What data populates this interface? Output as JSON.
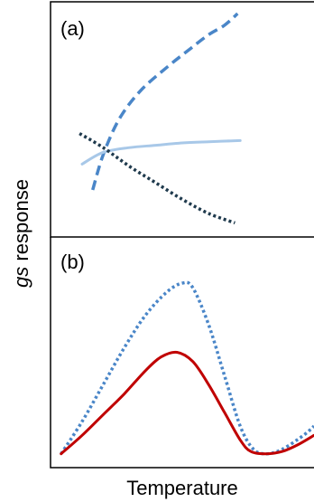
{
  "chart_data": {
    "xlabel": "Temperature",
    "ylabel": "gs response",
    "ylabel_italic_part": "gs",
    "ylabel_rest": " response",
    "panels": [
      {
        "label": "(a)",
        "type": "line",
        "series": [
          {
            "style": "dashed",
            "color": "#4a86c8",
            "points": [
              [
                0.16,
                0.2
              ],
              [
                0.2,
                0.35
              ],
              [
                0.26,
                0.5
              ],
              [
                0.34,
                0.62
              ],
              [
                0.44,
                0.72
              ],
              [
                0.53,
                0.8
              ],
              [
                0.6,
                0.86
              ],
              [
                0.66,
                0.9
              ],
              [
                0.71,
                0.95
              ]
            ]
          },
          {
            "style": "solid",
            "color": "#a8c8e8",
            "points": [
              [
                0.12,
                0.31
              ],
              [
                0.2,
                0.36
              ],
              [
                0.3,
                0.38
              ],
              [
                0.4,
                0.39
              ],
              [
                0.5,
                0.4
              ],
              [
                0.6,
                0.405
              ],
              [
                0.72,
                0.41
              ]
            ]
          },
          {
            "style": "dotted",
            "color": "#1f3a4d",
            "points": [
              [
                0.11,
                0.44
              ],
              [
                0.2,
                0.38
              ],
              [
                0.3,
                0.3
              ],
              [
                0.4,
                0.23
              ],
              [
                0.5,
                0.16
              ],
              [
                0.6,
                0.1
              ],
              [
                0.7,
                0.06
              ]
            ]
          }
        ]
      },
      {
        "label": "(b)",
        "type": "line",
        "series": [
          {
            "style": "dotted",
            "color": "#4a86c8",
            "points": [
              [
                0.04,
                0.06
              ],
              [
                0.12,
                0.2
              ],
              [
                0.2,
                0.36
              ],
              [
                0.28,
                0.52
              ],
              [
                0.36,
                0.66
              ],
              [
                0.44,
                0.76
              ],
              [
                0.5,
                0.8
              ],
              [
                0.54,
                0.78
              ],
              [
                0.6,
                0.62
              ],
              [
                0.66,
                0.4
              ],
              [
                0.72,
                0.18
              ],
              [
                0.77,
                0.08
              ],
              [
                0.82,
                0.06
              ],
              [
                0.88,
                0.08
              ],
              [
                0.96,
                0.14
              ],
              [
                1.0,
                0.18
              ]
            ]
          },
          {
            "style": "solid",
            "color": "#c00000",
            "points": [
              [
                0.04,
                0.06
              ],
              [
                0.12,
                0.14
              ],
              [
                0.2,
                0.23
              ],
              [
                0.28,
                0.32
              ],
              [
                0.36,
                0.42
              ],
              [
                0.42,
                0.48
              ],
              [
                0.48,
                0.5
              ],
              [
                0.54,
                0.46
              ],
              [
                0.6,
                0.36
              ],
              [
                0.66,
                0.24
              ],
              [
                0.72,
                0.12
              ],
              [
                0.76,
                0.07
              ],
              [
                0.82,
                0.06
              ],
              [
                0.88,
                0.07
              ],
              [
                0.94,
                0.1
              ],
              [
                1.0,
                0.14
              ]
            ]
          }
        ]
      }
    ]
  }
}
